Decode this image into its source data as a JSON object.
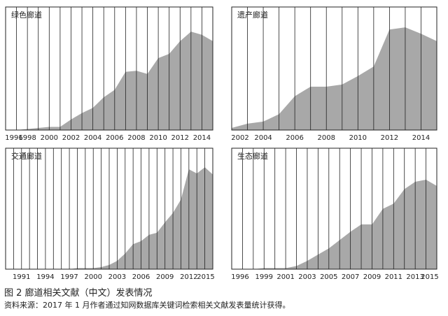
{
  "caption": {
    "figure_title": "图 2  廊道相关文献（中文）发表情况",
    "source_note": "资料来源：2017 年 1 月作者通过知网数据库关键词检索相关文献发表量统计获得。"
  },
  "colors": {
    "area_fill": "#a8a8a8",
    "frame": "#222222",
    "background": "#ffffff"
  },
  "chart_data": [
    {
      "type": "area",
      "title": "绿色廊道",
      "x_tick_labels": [
        "1996",
        "1998",
        "2000",
        "2002",
        "2004",
        "2006",
        "2008",
        "2010",
        "2012",
        "2014"
      ],
      "xlim": [
        1996,
        2015
      ],
      "ylim": [
        0,
        100
      ],
      "x": [
        1996,
        1997,
        1998,
        1999,
        2000,
        2001,
        2002,
        2003,
        2004,
        2005,
        2006,
        2007,
        2008,
        2009,
        2010,
        2011,
        2012,
        2013,
        2014,
        2015
      ],
      "values": [
        0,
        0,
        1,
        2,
        3,
        3,
        10,
        16,
        21,
        31,
        38,
        55,
        56,
        53,
        68,
        72,
        84,
        93,
        90,
        84
      ],
      "grid_x": true,
      "grid_y": false,
      "legend": "none"
    },
    {
      "type": "area",
      "title": "遗产廊道",
      "x_tick_labels": [
        "2002",
        "2004",
        "2006",
        "2008",
        "2010",
        "2012",
        "2014"
      ],
      "xlim": [
        2002,
        2015
      ],
      "ylim": [
        0,
        100
      ],
      "x": [
        2002,
        2003,
        2004,
        2005,
        2006,
        2007,
        2008,
        2009,
        2010,
        2011,
        2012,
        2013,
        2014,
        2015
      ],
      "values": [
        2,
        6,
        8,
        15,
        32,
        41,
        41,
        43,
        51,
        60,
        95,
        97,
        91,
        84
      ],
      "grid_x": true,
      "grid_y": false,
      "legend": "none"
    },
    {
      "type": "area",
      "title": "交通廊道",
      "x_tick_labels": [
        "1991",
        "1994",
        "1997",
        "2000",
        "2003",
        "2006",
        "2009",
        "2012",
        "2015"
      ],
      "xlim": [
        1989,
        2015
      ],
      "ylim": [
        0,
        100
      ],
      "x": [
        1989,
        1990,
        1991,
        1992,
        1993,
        1994,
        1995,
        1996,
        1997,
        1998,
        1999,
        2000,
        2001,
        2002,
        2003,
        2004,
        2005,
        2006,
        2007,
        2008,
        2009,
        2010,
        2011,
        2012,
        2013,
        2014,
        2015
      ],
      "values": [
        0,
        0,
        0,
        0,
        0,
        0,
        0,
        0,
        0,
        1,
        1,
        1,
        2,
        4,
        8,
        15,
        24,
        27,
        33,
        35,
        45,
        54,
        67,
        96,
        92,
        98,
        91
      ],
      "grid_x": true,
      "grid_y": false,
      "legend": "none"
    },
    {
      "type": "area",
      "title": "生态廊道",
      "x_tick_labels": [
        "1996",
        "1999",
        "2001",
        "2003",
        "2005",
        "2007",
        "2009",
        "2011",
        "2013",
        "2015"
      ],
      "xlim": [
        1996,
        2015
      ],
      "ylim": [
        0,
        100
      ],
      "x": [
        1996,
        1997,
        1998,
        1999,
        2000,
        2001,
        2002,
        2003,
        2004,
        2005,
        2006,
        2007,
        2008,
        2009,
        2010,
        2011,
        2012,
        2013,
        2014,
        2015
      ],
      "values": [
        0,
        0,
        0,
        1,
        1,
        1,
        3,
        8,
        14,
        20,
        28,
        36,
        43,
        43,
        58,
        63,
        77,
        84,
        86,
        80
      ],
      "grid_x": true,
      "grid_y": false,
      "legend": "none"
    }
  ]
}
